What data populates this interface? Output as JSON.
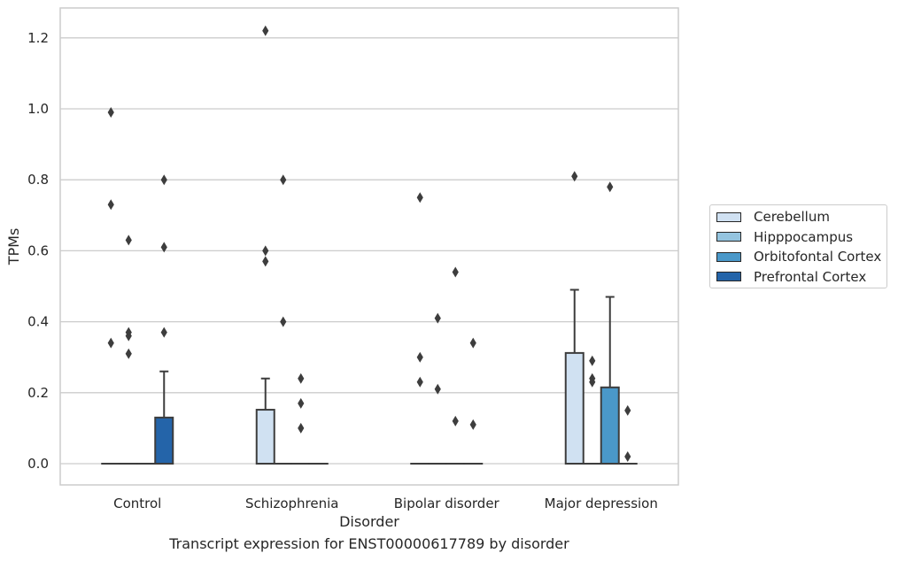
{
  "chart_data": {
    "type": "boxplot",
    "title": "",
    "xlabel": "Disorder",
    "ylabel": "TPMs",
    "caption": "Transcript expression for ENST00000617789 by disorder",
    "ylim": [
      -0.06,
      1.28
    ],
    "yticks": [
      "0.0",
      "0.2",
      "0.4",
      "0.6",
      "0.8",
      "1.0",
      "1.2"
    ],
    "grid": "horizontal",
    "legend_position": "right",
    "categories": [
      "Control",
      "Schizophrenia",
      "Bipolar disorder",
      "Major depression"
    ],
    "series": [
      {
        "name": "Cerebellum",
        "color": "#d0e1f2",
        "boxes": [
          {
            "q1": 0,
            "median": 0,
            "q3": 0,
            "whisker_low": 0,
            "whisker_high": 0,
            "outliers": [
              0.99,
              0.73,
              0.34
            ]
          },
          {
            "q1": 0,
            "median": 0,
            "q3": 0.152,
            "whisker_low": 0,
            "whisker_high": 0.24,
            "outliers": [
              1.22,
              0.6,
              0.57
            ]
          },
          {
            "q1": 0,
            "median": 0,
            "q3": 0,
            "whisker_low": 0,
            "whisker_high": 0,
            "outliers": [
              0.75,
              0.3,
              0.23
            ]
          },
          {
            "q1": 0,
            "median": 0,
            "q3": 0.312,
            "whisker_low": 0,
            "whisker_high": 0.49,
            "outliers": [
              0.81
            ]
          }
        ]
      },
      {
        "name": "Hipppocampus",
        "color": "#94c4df",
        "boxes": [
          {
            "q1": 0,
            "median": 0,
            "q3": 0,
            "whisker_low": 0,
            "whisker_high": 0,
            "outliers": [
              0.63,
              0.37,
              0.36,
              0.31
            ]
          },
          {
            "q1": 0,
            "median": 0,
            "q3": 0,
            "whisker_low": 0,
            "whisker_high": 0,
            "outliers": [
              0.8,
              0.4
            ]
          },
          {
            "q1": 0,
            "median": 0,
            "q3": 0,
            "whisker_low": 0,
            "whisker_high": 0,
            "outliers": [
              0.41,
              0.21
            ]
          },
          {
            "q1": 0,
            "median": 0,
            "q3": 0,
            "whisker_low": 0,
            "whisker_high": 0,
            "outliers": [
              0.29,
              0.24,
              0.23
            ]
          }
        ]
      },
      {
        "name": "Orbitofontal Cortex",
        "color": "#4a98c9",
        "boxes": [
          {
            "q1": 0,
            "median": 0,
            "q3": 0,
            "whisker_low": 0,
            "whisker_high": 0,
            "outliers": []
          },
          {
            "q1": 0,
            "median": 0,
            "q3": 0,
            "whisker_low": 0,
            "whisker_high": 0,
            "outliers": [
              0.24,
              0.17,
              0.1
            ]
          },
          {
            "q1": 0,
            "median": 0,
            "q3": 0,
            "whisker_low": 0,
            "whisker_high": 0,
            "outliers": [
              0.54,
              0.12
            ]
          },
          {
            "q1": 0,
            "median": 0,
            "q3": 0.215,
            "whisker_low": 0,
            "whisker_high": 0.47,
            "outliers": [
              0.78
            ]
          }
        ]
      },
      {
        "name": "Prefrontal Cortex",
        "color": "#2464a9",
        "boxes": [
          {
            "q1": 0,
            "median": 0,
            "q3": 0.13,
            "whisker_low": 0,
            "whisker_high": 0.26,
            "outliers": [
              0.8,
              0.61,
              0.37
            ]
          },
          {
            "q1": 0,
            "median": 0,
            "q3": 0,
            "whisker_low": 0,
            "whisker_high": 0,
            "outliers": []
          },
          {
            "q1": 0,
            "median": 0,
            "q3": 0,
            "whisker_low": 0,
            "whisker_high": 0,
            "outliers": [
              0.34,
              0.11
            ]
          },
          {
            "q1": 0,
            "median": 0,
            "q3": 0,
            "whisker_low": 0,
            "whisker_high": 0,
            "outliers": [
              0.15,
              0.02
            ]
          }
        ]
      }
    ]
  }
}
